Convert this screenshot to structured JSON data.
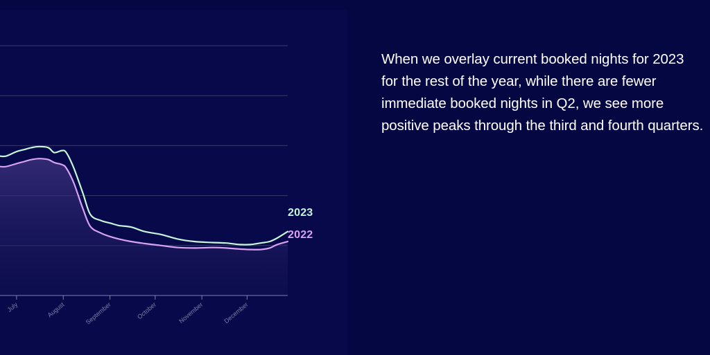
{
  "caption": "When we overlay current booked nights for 2023 for the rest of the year, while there are fewer immediate booked nights in Q2, we see more positive peaks through the third and fourth quarters.",
  "colors": {
    "background": "#050743",
    "chart_panel": "#07094a",
    "series_2023": "#c6f5d8",
    "series_2022": "#d7a2f2",
    "gridline": "#3a3b6a",
    "axis": "#7f80a8",
    "tick_label": "#7d7fa6"
  },
  "chart_data": {
    "type": "line",
    "title": "",
    "xlabel": "",
    "ylabel": "",
    "x_ticks": [
      "July",
      "August",
      "September",
      "October",
      "November",
      "December"
    ],
    "x_tick_days": [
      0,
      31,
      62,
      92,
      123,
      153
    ],
    "xlim": [
      -11,
      180
    ],
    "ylim": [
      0,
      5
    ],
    "grid": true,
    "y_gridlines": [
      1,
      2,
      3,
      4,
      5
    ],
    "legend": "right-end labels",
    "series": [
      {
        "name": "2023",
        "color": "#c6f5d8",
        "points": [
          [
            -11,
            2.79
          ],
          [
            -7,
            2.79
          ],
          [
            0,
            2.88
          ],
          [
            5,
            2.92
          ],
          [
            10,
            2.96
          ],
          [
            15,
            2.98
          ],
          [
            21,
            2.96
          ],
          [
            25,
            2.86
          ],
          [
            30,
            2.9
          ],
          [
            33,
            2.86
          ],
          [
            38,
            2.55
          ],
          [
            44,
            2.05
          ],
          [
            49,
            1.62
          ],
          [
            56,
            1.5
          ],
          [
            62,
            1.45
          ],
          [
            68,
            1.4
          ],
          [
            76,
            1.37
          ],
          [
            85,
            1.28
          ],
          [
            96,
            1.22
          ],
          [
            107,
            1.13
          ],
          [
            118,
            1.08
          ],
          [
            130,
            1.06
          ],
          [
            139,
            1.05
          ],
          [
            148,
            1.02
          ],
          [
            155,
            1.02
          ],
          [
            162,
            1.05
          ],
          [
            168,
            1.08
          ],
          [
            173,
            1.15
          ],
          [
            180,
            1.28
          ]
        ]
      },
      {
        "name": "2022",
        "color": "#d7a2f2",
        "points": [
          [
            -11,
            2.58
          ],
          [
            -7,
            2.58
          ],
          [
            0,
            2.64
          ],
          [
            5,
            2.68
          ],
          [
            10,
            2.72
          ],
          [
            15,
            2.74
          ],
          [
            21,
            2.72
          ],
          [
            25,
            2.66
          ],
          [
            30,
            2.62
          ],
          [
            33,
            2.55
          ],
          [
            38,
            2.25
          ],
          [
            44,
            1.74
          ],
          [
            49,
            1.38
          ],
          [
            56,
            1.25
          ],
          [
            62,
            1.18
          ],
          [
            68,
            1.13
          ],
          [
            76,
            1.08
          ],
          [
            85,
            1.04
          ],
          [
            96,
            1.0
          ],
          [
            107,
            0.96
          ],
          [
            118,
            0.95
          ],
          [
            130,
            0.96
          ],
          [
            139,
            0.95
          ],
          [
            148,
            0.93
          ],
          [
            155,
            0.92
          ],
          [
            162,
            0.92
          ],
          [
            168,
            0.95
          ],
          [
            173,
            1.02
          ],
          [
            180,
            1.08
          ]
        ]
      }
    ]
  }
}
